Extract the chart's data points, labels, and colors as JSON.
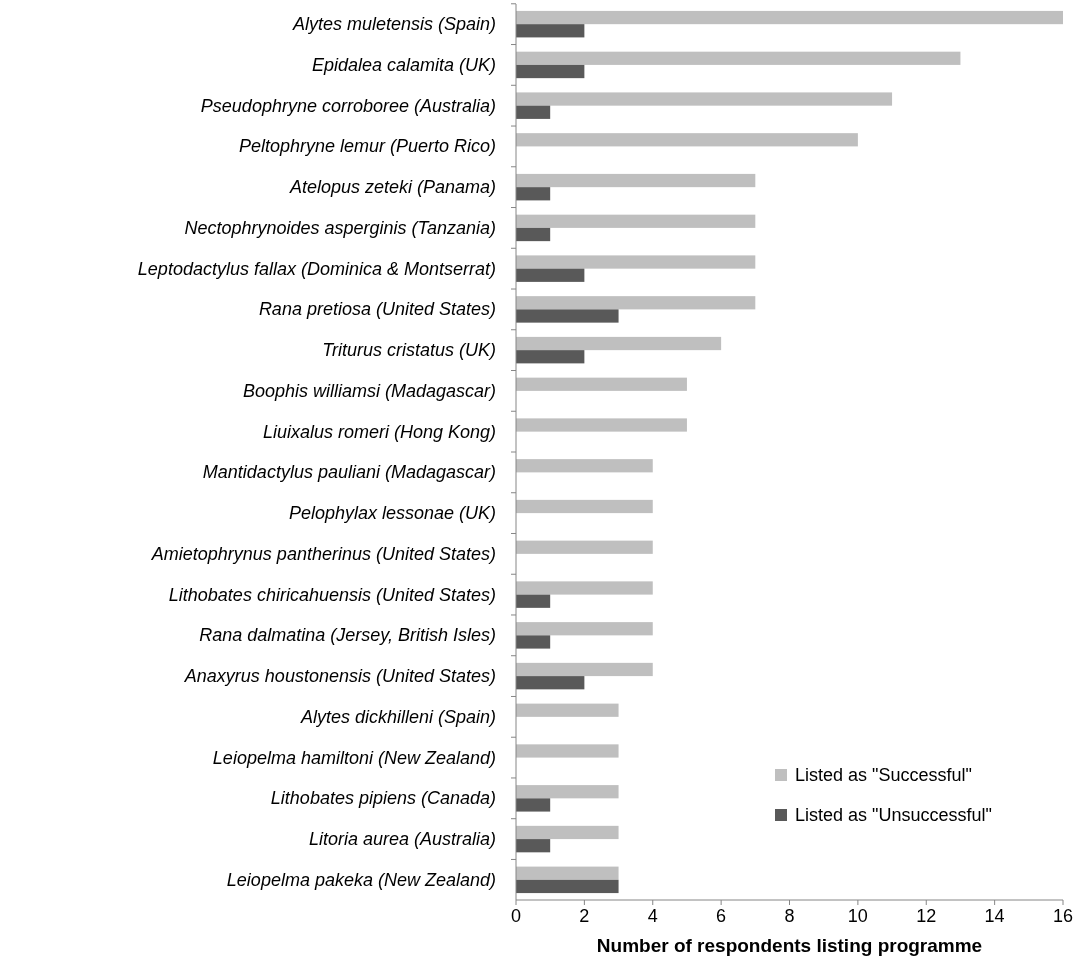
{
  "chart_data": {
    "type": "bar",
    "orientation": "horizontal",
    "xlabel": "Number of respondents listing programme",
    "categories": [
      "Alytes muletensis (Spain)",
      "Epidalea calamita (UK)",
      "Pseudophryne corroboree (Australia)",
      "Peltophryne lemur (Puerto Rico)",
      "Atelopus zeteki (Panama)",
      "Nectophrynoides asperginis (Tanzania)",
      "Leptodactylus fallax (Dominica & Montserrat)",
      "Rana pretiosa (United States)",
      "Triturus cristatus (UK)",
      "Boophis williamsi (Madagascar)",
      "Liuixalus romeri (Hong Kong)",
      "Mantidactylus pauliani (Madagascar)",
      "Pelophylax lessonae (UK)",
      "Amietophrynus pantherinus (United States)",
      "Lithobates chiricahuensis (United States)",
      "Rana dalmatina (Jersey, British Isles)",
      "Anaxyrus houstonensis (United States)",
      "Alytes dickhilleni (Spain)",
      "Leiopelma hamiltoni (New Zealand)",
      "Lithobates pipiens (Canada)",
      "Litoria aurea (Australia)",
      "Leiopelma pakeka (New Zealand)"
    ],
    "series": [
      {
        "name": "Listed as \"Successful\"",
        "color": "#bfbfbf",
        "values": [
          16,
          13,
          11,
          10,
          7,
          7,
          7,
          7,
          6,
          5,
          5,
          4,
          4,
          4,
          4,
          4,
          4,
          3,
          3,
          3,
          3,
          3
        ]
      },
      {
        "name": "Listed as \"Unsuccessful\"",
        "color": "#595959",
        "values": [
          2,
          2,
          1,
          0,
          1,
          1,
          2,
          3,
          2,
          0,
          0,
          0,
          0,
          0,
          1,
          1,
          2,
          0,
          0,
          1,
          1,
          3
        ]
      }
    ],
    "xlim": [
      0,
      16
    ],
    "xticks": [
      0,
      2,
      4,
      6,
      8,
      10,
      12,
      14,
      16
    ],
    "grid": false,
    "legend": "bottom right"
  }
}
